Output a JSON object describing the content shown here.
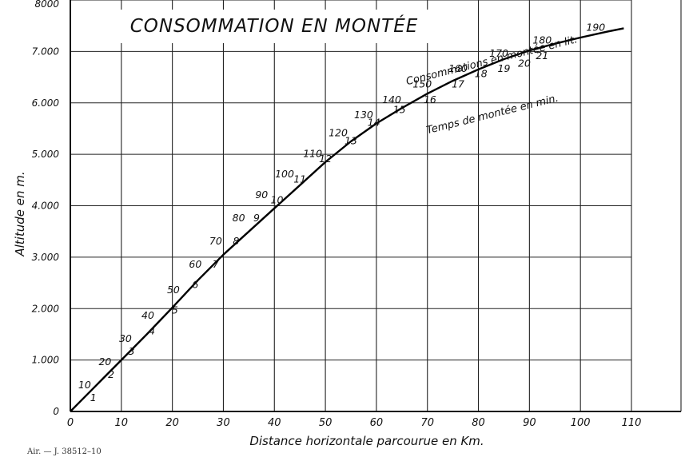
{
  "chart_data": {
    "type": "line",
    "title": "CONSOMMATION EN MONTÉE",
    "xlabel": "Distance horizontale parcourue en Km.",
    "ylabel": "Altitude en m.",
    "xlim": [
      0,
      110
    ],
    "ylim": [
      0,
      8000
    ],
    "x_ticks": [
      "0",
      "10",
      "20",
      "30",
      "40",
      "50",
      "60",
      "70",
      "80",
      "90",
      "100",
      "110"
    ],
    "y_ticks": [
      "0",
      "1.000",
      "2.000",
      "3.000",
      "4.000",
      "5.000",
      "6.000",
      "7.000",
      "8000"
    ],
    "grid": true,
    "series": [
      {
        "name": "Consommations en montée en lit.",
        "x": [
          0,
          5,
          10,
          15,
          20,
          25,
          30,
          35,
          40,
          45,
          50,
          55,
          60,
          65,
          70,
          75,
          80,
          85,
          90,
          95,
          100,
          105,
          108.5
        ],
        "y": [
          0,
          500,
          1000,
          1500,
          2020,
          2550,
          3050,
          3500,
          3950,
          4400,
          4850,
          5250,
          5600,
          5900,
          6180,
          6430,
          6650,
          6850,
          7020,
          7150,
          7270,
          7380,
          7450
        ]
      }
    ],
    "consumption_marks": [
      {
        "label": "10",
        "x": 2.8,
        "y": 450
      },
      {
        "label": "20",
        "x": 6.8,
        "y": 900
      },
      {
        "label": "30",
        "x": 10.8,
        "y": 1350
      },
      {
        "label": "40",
        "x": 15.2,
        "y": 1800
      },
      {
        "label": "50",
        "x": 20.2,
        "y": 2300
      },
      {
        "label": "60",
        "x": 24.5,
        "y": 2800
      },
      {
        "label": "70",
        "x": 28.5,
        "y": 3250
      },
      {
        "label": "80",
        "x": 33,
        "y": 3700
      },
      {
        "label": "90",
        "x": 37.5,
        "y": 4150
      },
      {
        "label": "100",
        "x": 42,
        "y": 4550
      },
      {
        "label": "110",
        "x": 47.5,
        "y": 4950
      },
      {
        "label": "120",
        "x": 52.5,
        "y": 5350
      },
      {
        "label": "130",
        "x": 57.5,
        "y": 5700
      },
      {
        "label": "140",
        "x": 63,
        "y": 6000
      },
      {
        "label": "150",
        "x": 69,
        "y": 6300
      },
      {
        "label": "160",
        "x": 76,
        "y": 6600
      },
      {
        "label": "170",
        "x": 84,
        "y": 6900
      },
      {
        "label": "180",
        "x": 92.5,
        "y": 7150
      },
      {
        "label": "190",
        "x": 103,
        "y": 7400
      }
    ],
    "time_marks": [
      {
        "label": "1",
        "x": 4.5,
        "y": 200
      },
      {
        "label": "2",
        "x": 8,
        "y": 650
      },
      {
        "label": "3",
        "x": 12,
        "y": 1100
      },
      {
        "label": "4",
        "x": 16,
        "y": 1500
      },
      {
        "label": "5",
        "x": 20.5,
        "y": 1900
      },
      {
        "label": "6",
        "x": 24.5,
        "y": 2400
      },
      {
        "label": "7",
        "x": 28.5,
        "y": 2800
      },
      {
        "label": "8",
        "x": 32.5,
        "y": 3250
      },
      {
        "label": "9",
        "x": 36.5,
        "y": 3700
      },
      {
        "label": "10",
        "x": 40.5,
        "y": 4050
      },
      {
        "label": "11",
        "x": 45,
        "y": 4450
      },
      {
        "label": "12",
        "x": 50,
        "y": 4850
      },
      {
        "label": "13",
        "x": 55,
        "y": 5200
      },
      {
        "label": "14",
        "x": 59.5,
        "y": 5550
      },
      {
        "label": "15",
        "x": 64.5,
        "y": 5800
      },
      {
        "label": "16",
        "x": 70.5,
        "y": 6000
      },
      {
        "label": "17",
        "x": 76,
        "y": 6300
      },
      {
        "label": "18",
        "x": 80.5,
        "y": 6500
      },
      {
        "label": "19",
        "x": 85,
        "y": 6600
      },
      {
        "label": "20",
        "x": 89,
        "y": 6700
      },
      {
        "label": "21",
        "x": 92.5,
        "y": 6850
      }
    ],
    "annotations": [
      {
        "text": "Consommations en montée en lit.",
        "x": 66,
        "y": 6350,
        "angle": -14
      },
      {
        "text": "Temps de montée en min.",
        "x": 70,
        "y": 5400,
        "angle": -14
      }
    ]
  },
  "footer": {
    "code": "Air. — J. 38512–10"
  }
}
